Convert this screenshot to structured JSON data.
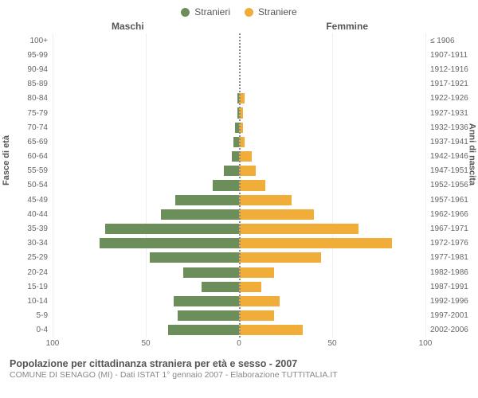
{
  "legend": {
    "male": "Stranieri",
    "female": "Straniere"
  },
  "headers": {
    "male": "Maschi",
    "female": "Femmine"
  },
  "axis_titles": {
    "left": "Fasce di età",
    "right": "Anni di nascita"
  },
  "colors": {
    "male": "#6b8e5a",
    "female": "#f0ad3a",
    "grid": "#eeeeee",
    "centerline": "#888888",
    "text": "#666666",
    "bg": "#ffffff"
  },
  "xmax": 100,
  "xticks": [
    100,
    50,
    0,
    50,
    100
  ],
  "fontsize": {
    "tick": 10,
    "axis_title": 11,
    "legend": 12,
    "header": 12,
    "footer_title": 12.5,
    "footer_sub": 10.5
  },
  "rows": [
    {
      "age": "100+",
      "birth": "≤ 1906",
      "m": 0,
      "f": 0
    },
    {
      "age": "95-99",
      "birth": "1907-1911",
      "m": 0,
      "f": 0
    },
    {
      "age": "90-94",
      "birth": "1912-1916",
      "m": 0,
      "f": 0
    },
    {
      "age": "85-89",
      "birth": "1917-1921",
      "m": 0,
      "f": 0
    },
    {
      "age": "80-84",
      "birth": "1922-1926",
      "m": 1,
      "f": 3
    },
    {
      "age": "75-79",
      "birth": "1927-1931",
      "m": 1,
      "f": 2
    },
    {
      "age": "70-74",
      "birth": "1932-1936",
      "m": 2,
      "f": 2
    },
    {
      "age": "65-69",
      "birth": "1937-1941",
      "m": 3,
      "f": 3
    },
    {
      "age": "60-64",
      "birth": "1942-1946",
      "m": 4,
      "f": 7
    },
    {
      "age": "55-59",
      "birth": "1947-1951",
      "m": 8,
      "f": 9
    },
    {
      "age": "50-54",
      "birth": "1952-1956",
      "m": 14,
      "f": 14
    },
    {
      "age": "45-49",
      "birth": "1957-1961",
      "m": 34,
      "f": 28
    },
    {
      "age": "40-44",
      "birth": "1962-1966",
      "m": 42,
      "f": 40
    },
    {
      "age": "35-39",
      "birth": "1967-1971",
      "m": 72,
      "f": 64
    },
    {
      "age": "30-34",
      "birth": "1972-1976",
      "m": 75,
      "f": 82
    },
    {
      "age": "25-29",
      "birth": "1977-1981",
      "m": 48,
      "f": 44
    },
    {
      "age": "20-24",
      "birth": "1982-1986",
      "m": 30,
      "f": 19
    },
    {
      "age": "15-19",
      "birth": "1987-1991",
      "m": 20,
      "f": 12
    },
    {
      "age": "10-14",
      "birth": "1992-1996",
      "m": 35,
      "f": 22
    },
    {
      "age": "5-9",
      "birth": "1997-2001",
      "m": 33,
      "f": 19
    },
    {
      "age": "0-4",
      "birth": "2002-2006",
      "m": 38,
      "f": 34
    }
  ],
  "footer": {
    "title": "Popolazione per cittadinanza straniera per età e sesso - 2007",
    "sub": "COMUNE DI SENAGO (MI) - Dati ISTAT 1° gennaio 2007 - Elaborazione TUTTITALIA.IT"
  }
}
